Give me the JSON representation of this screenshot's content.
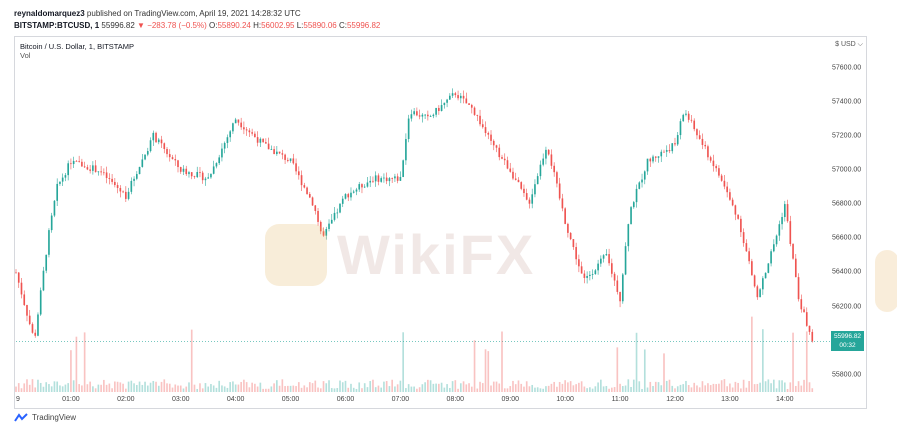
{
  "publisher_line": {
    "author": "reynaldomarquez3",
    "text": " published on TradingView.com, April 19, 2021 14:28:32 UTC"
  },
  "ticker_line": {
    "symbol": "BITSTAMP:BTCUSD, 1",
    "last": "55996.82",
    "change": "−283.78 (−0.5%)",
    "o_label": "O:",
    "o": "55890.24",
    "h_label": "H:",
    "h": "56002.95",
    "l_label": "L:",
    "l": "55890.06",
    "c_label": "C:",
    "c": "55996.82"
  },
  "chart_legend": {
    "title": "Bitcoin / U.S. Dollar, 1, BITSTAMP",
    "volume": "Vol"
  },
  "axis_corner_label": "$ USD ⌵",
  "last_price_tag": {
    "price": "55996.82",
    "countdown": "00:32"
  },
  "footer": {
    "brand": "TradingView",
    "logo_icon": "tradingview-logo-icon"
  },
  "watermark": {
    "text": "WikiFX"
  },
  "colors": {
    "up": "#26a69a",
    "down": "#ef5350",
    "grid": "#f0f3fa",
    "axis_text": "#444444"
  },
  "chart_data": {
    "type": "candlestick",
    "price_ticks": [
      "57600.00",
      "57400.00",
      "57200.00",
      "57000.00",
      "56800.00",
      "56600.00",
      "56400.00",
      "56200.00",
      "55800.00"
    ],
    "time_ticks": [
      "9",
      "01:00",
      "02:00",
      "03:00",
      "04:00",
      "05:00",
      "06:00",
      "07:00",
      "08:00",
      "09:00",
      "10:00",
      "11:00",
      "12:00",
      "13:00",
      "14:00"
    ],
    "ylim": [
      55700,
      57750
    ],
    "path": [
      [
        "00:00",
        56400
      ],
      [
        "00:20",
        56000
      ],
      [
        "00:35",
        56600
      ],
      [
        "00:45",
        56900
      ],
      [
        "01:00",
        57050
      ],
      [
        "01:30",
        57000
      ],
      [
        "02:00",
        56850
      ],
      [
        "02:30",
        57200
      ],
      [
        "03:00",
        57000
      ],
      [
        "03:30",
        56950
      ],
      [
        "04:00",
        57300
      ],
      [
        "04:30",
        57150
      ],
      [
        "05:00",
        57050
      ],
      [
        "05:25",
        56800
      ],
      [
        "05:35",
        56600
      ],
      [
        "06:00",
        56850
      ],
      [
        "06:30",
        56950
      ],
      [
        "07:00",
        56950
      ],
      [
        "07:10",
        57350
      ],
      [
        "07:30",
        57300
      ],
      [
        "08:00",
        57450
      ],
      [
        "08:20",
        57350
      ],
      [
        "08:40",
        57150
      ],
      [
        "09:00",
        57000
      ],
      [
        "09:20",
        56800
      ],
      [
        "09:40",
        57150
      ],
      [
        "10:00",
        56700
      ],
      [
        "10:20",
        56350
      ],
      [
        "10:45",
        56500
      ],
      [
        "11:00",
        56250
      ],
      [
        "11:10",
        56750
      ],
      [
        "11:30",
        57050
      ],
      [
        "12:00",
        57150
      ],
      [
        "12:10",
        57350
      ],
      [
        "12:30",
        57150
      ],
      [
        "12:50",
        56950
      ],
      [
        "13:10",
        56700
      ],
      [
        "13:30",
        56250
      ],
      [
        "13:50",
        56600
      ],
      [
        "14:00",
        56800
      ],
      [
        "14:15",
        56250
      ],
      [
        "14:30",
        55996.82
      ]
    ],
    "last_price": 55996.82,
    "has_volume_pane": true
  }
}
